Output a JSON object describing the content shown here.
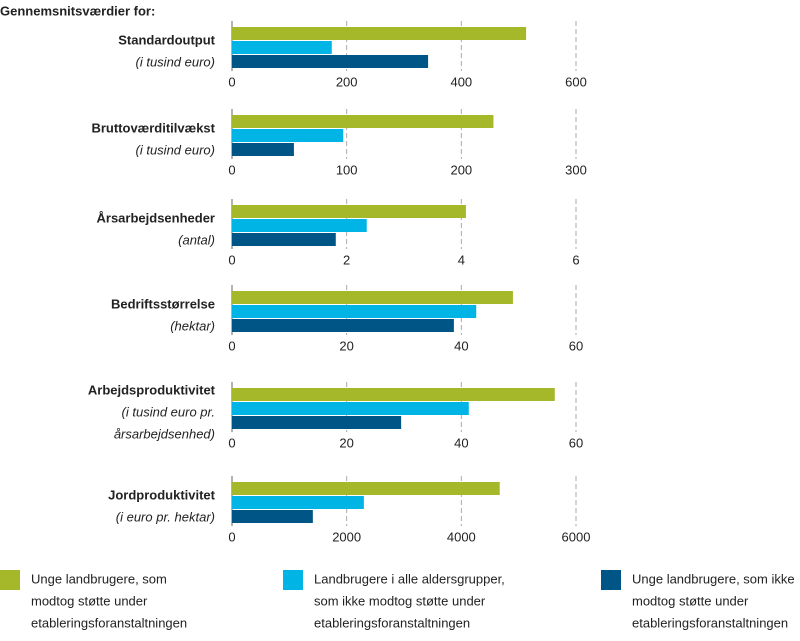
{
  "heading": "Gennemsnitsværdier for:",
  "legend": [
    {
      "label": [
        "Unge landbrugere, som",
        "modtog støtte under",
        "etableringsforanstaltningen"
      ],
      "color": "#a5b82a"
    },
    {
      "label": [
        "Landbrugere i alle aldersgrupper,",
        "som ikke modtog støtte under",
        "etableringsforanstaltningen"
      ],
      "color": "#00b4e6"
    },
    {
      "label": [
        "Unge landbrugere, som ikke",
        "modtog støtte under",
        "etableringsforanstaltningen"
      ],
      "color": "#005587"
    }
  ],
  "chart_data": [
    {
      "type": "bar",
      "title": "Standardoutput",
      "subtitle": [
        "(i tusind euro)"
      ],
      "values": [
        513,
        174,
        342
      ],
      "xlim": [
        0,
        600
      ],
      "xticks": [
        0,
        200,
        400,
        600
      ],
      "grid": true
    },
    {
      "type": "bar",
      "title": "Bruttoværditilvækst",
      "subtitle": [
        "(i tusind euro)"
      ],
      "values": [
        228,
        97,
        54
      ],
      "xlim": [
        0,
        300
      ],
      "xticks": [
        0,
        100,
        200,
        300
      ],
      "grid": true
    },
    {
      "type": "bar",
      "title": "Årsarbejdsenheder",
      "subtitle": [
        "(antal)"
      ],
      "values": [
        4.08,
        2.35,
        1.81
      ],
      "xlim": [
        0,
        6
      ],
      "xticks": [
        0,
        2,
        4,
        6
      ],
      "grid": true
    },
    {
      "type": "bar",
      "title": "Bedriftsstørrelse",
      "subtitle": [
        "(hektar)"
      ],
      "values": [
        49,
        42.6,
        38.7
      ],
      "xlim": [
        0,
        60
      ],
      "xticks": [
        0,
        20,
        40,
        60
      ],
      "grid": true
    },
    {
      "type": "bar",
      "title": "Arbejdsproduktivitet",
      "subtitle": [
        "(i tusind euro pr.",
        "årsarbejdsenhed)"
      ],
      "values": [
        56.3,
        41.3,
        29.5
      ],
      "xlim": [
        0,
        60
      ],
      "xticks": [
        0,
        20,
        40,
        60
      ],
      "grid": true
    },
    {
      "type": "bar",
      "title": "Jordproduktivitet",
      "subtitle": [
        "(i euro pr. hektar)"
      ],
      "values": [
        4670,
        2300,
        1410
      ],
      "xlim": [
        0,
        6000
      ],
      "xticks": [
        0,
        2000,
        4000,
        6000
      ],
      "grid": true
    }
  ]
}
